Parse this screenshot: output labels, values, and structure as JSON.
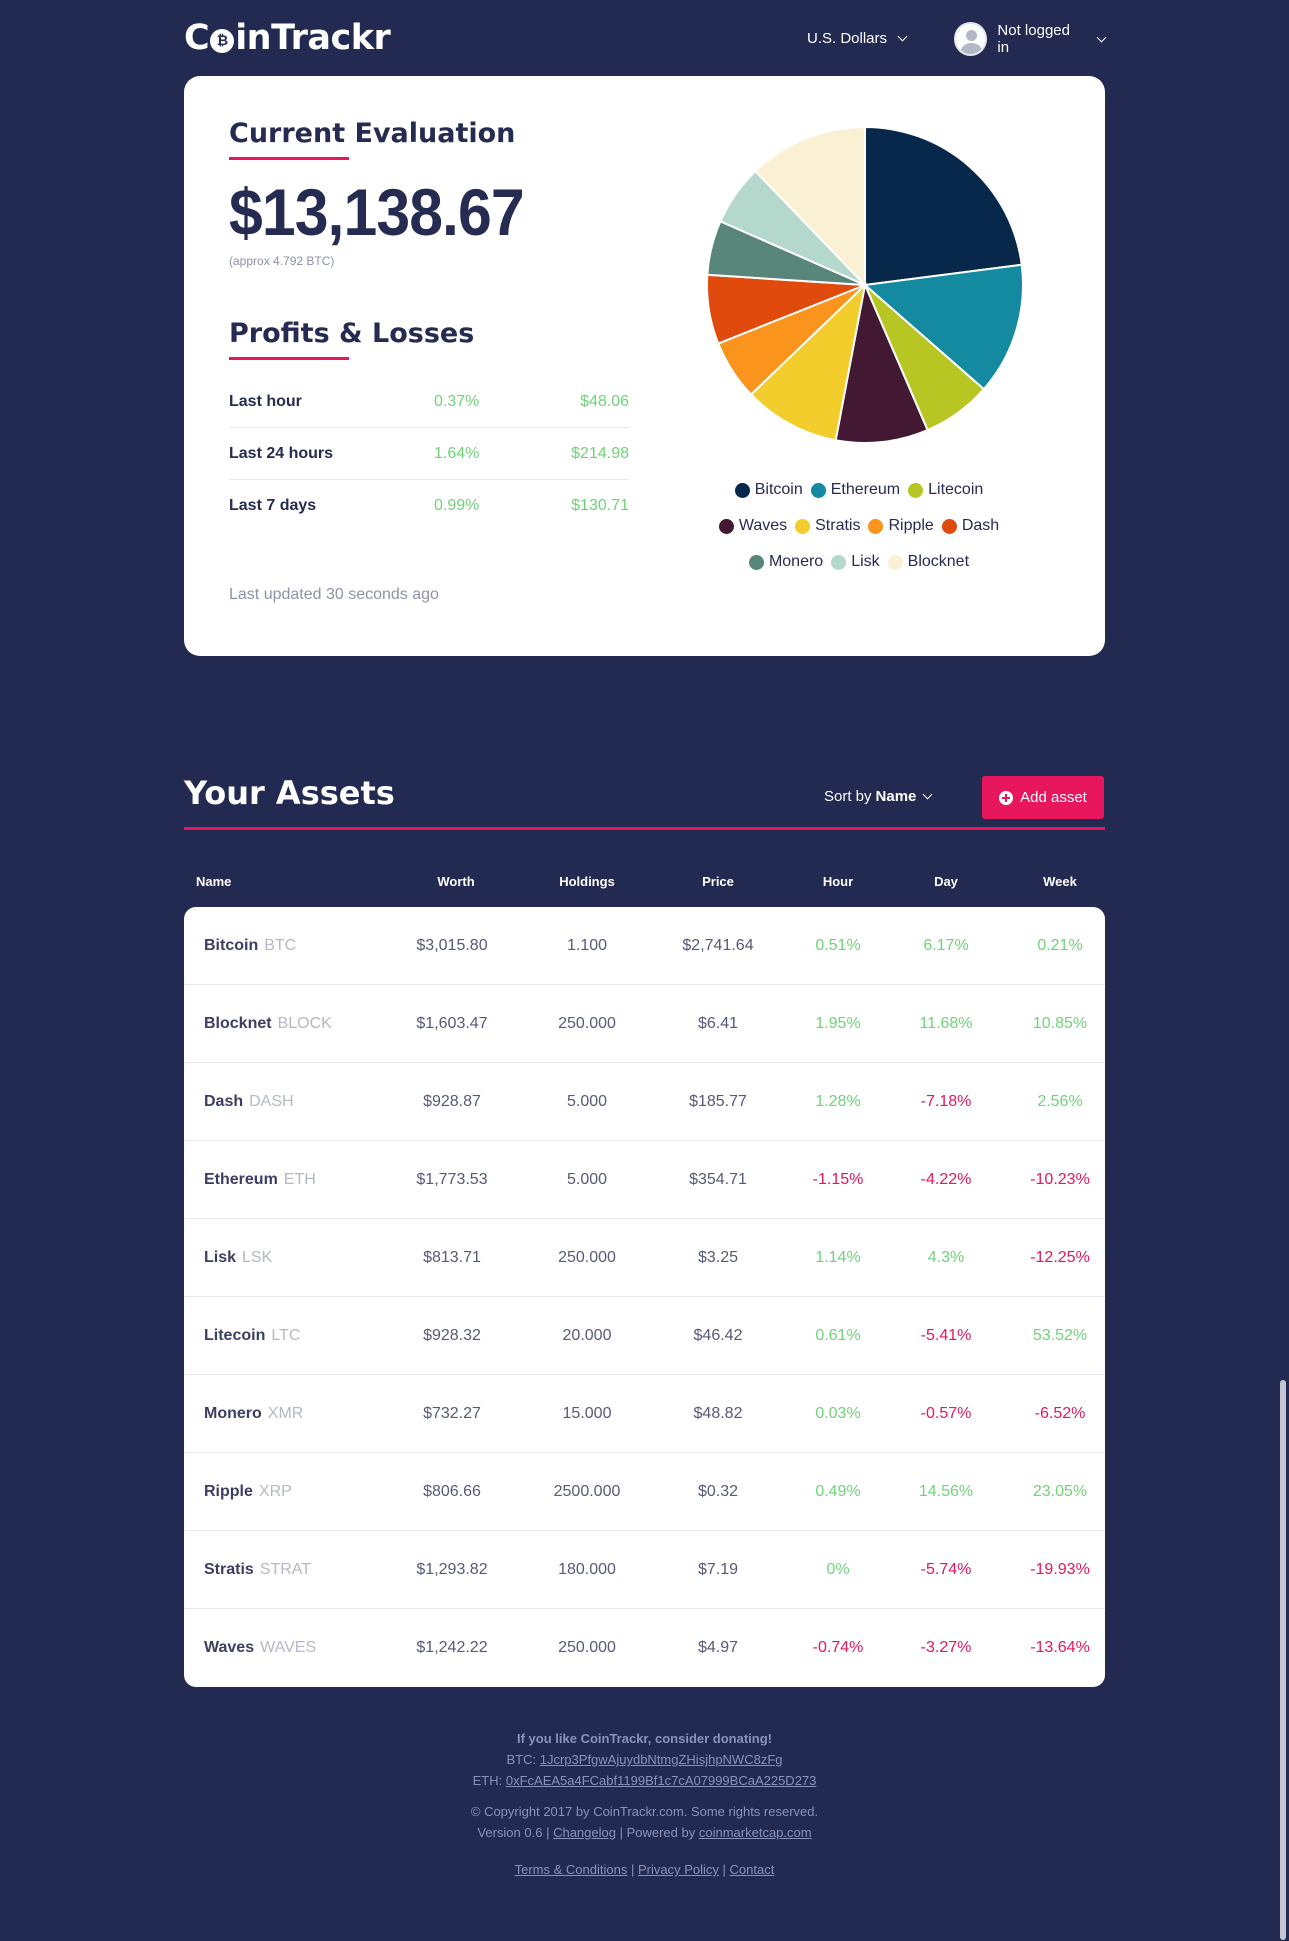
{
  "header": {
    "logo": {
      "pre": "C",
      "coin_glyph": "₿",
      "post": "inTrackr"
    },
    "currency": "U.S. Dollars",
    "user": "Not logged in"
  },
  "evaluation": {
    "title": "Current Evaluation",
    "amount": "$13,138.67",
    "approx": "(approx 4.792 BTC)"
  },
  "profits": {
    "title": "Profits & Losses",
    "rows": [
      {
        "label": "Last hour",
        "pct": "0.37%",
        "value": "$48.06"
      },
      {
        "label": "Last 24 hours",
        "pct": "1.64%",
        "value": "$214.98"
      },
      {
        "label": "Last 7 days",
        "pct": "0.99%",
        "value": "$130.71"
      }
    ],
    "updated": "Last updated 30 seconds ago"
  },
  "chart_data": {
    "type": "pie",
    "slices": [
      {
        "name": "Bitcoin",
        "value": 3015.8,
        "color": "#07284a"
      },
      {
        "name": "Ethereum",
        "value": 1773.53,
        "color": "#138aa0"
      },
      {
        "name": "Litecoin",
        "value": 928.32,
        "color": "#b7c623"
      },
      {
        "name": "Waves",
        "value": 1242.22,
        "color": "#431832"
      },
      {
        "name": "Stratis",
        "value": 1293.82,
        "color": "#f2cd2c"
      },
      {
        "name": "Ripple",
        "value": 806.66,
        "color": "#fa941c"
      },
      {
        "name": "Dash",
        "value": 928.87,
        "color": "#e04b0d"
      },
      {
        "name": "Monero",
        "value": 732.27,
        "color": "#58867a"
      },
      {
        "name": "Lisk",
        "value": 813.71,
        "color": "#b5d8cc"
      },
      {
        "name": "Blocknet",
        "value": 1603.47,
        "color": "#faf0d4"
      }
    ],
    "legend_rows": [
      [
        "Bitcoin",
        "Ethereum",
        "Litecoin"
      ],
      [
        "Waves",
        "Stratis",
        "Ripple",
        "Dash"
      ],
      [
        "Monero",
        "Lisk",
        "Blocknet"
      ]
    ]
  },
  "assets": {
    "title": "Your Assets",
    "sort_prefix": "Sort by",
    "sort_value": "Name",
    "add_label": "Add asset",
    "columns": [
      "Name",
      "Worth",
      "Holdings",
      "Price",
      "Hour",
      "Day",
      "Week"
    ],
    "rows": [
      {
        "name": "Bitcoin",
        "symbol": "BTC",
        "worth": "$3,015.80",
        "holdings": "1.100",
        "price": "$2,741.64",
        "hour": "0.51%",
        "day": "6.17%",
        "week": "0.21%"
      },
      {
        "name": "Blocknet",
        "symbol": "BLOCK",
        "worth": "$1,603.47",
        "holdings": "250.000",
        "price": "$6.41",
        "hour": "1.95%",
        "day": "11.68%",
        "week": "10.85%"
      },
      {
        "name": "Dash",
        "symbol": "DASH",
        "worth": "$928.87",
        "holdings": "5.000",
        "price": "$185.77",
        "hour": "1.28%",
        "day": "-7.18%",
        "week": "2.56%"
      },
      {
        "name": "Ethereum",
        "symbol": "ETH",
        "worth": "$1,773.53",
        "holdings": "5.000",
        "price": "$354.71",
        "hour": "-1.15%",
        "day": "-4.22%",
        "week": "-10.23%"
      },
      {
        "name": "Lisk",
        "symbol": "LSK",
        "worth": "$813.71",
        "holdings": "250.000",
        "price": "$3.25",
        "hour": "1.14%",
        "day": "4.3%",
        "week": "-12.25%"
      },
      {
        "name": "Litecoin",
        "symbol": "LTC",
        "worth": "$928.32",
        "holdings": "20.000",
        "price": "$46.42",
        "hour": "0.61%",
        "day": "-5.41%",
        "week": "53.52%"
      },
      {
        "name": "Monero",
        "symbol": "XMR",
        "worth": "$732.27",
        "holdings": "15.000",
        "price": "$48.82",
        "hour": "0.03%",
        "day": "-0.57%",
        "week": "-6.52%"
      },
      {
        "name": "Ripple",
        "symbol": "XRP",
        "worth": "$806.66",
        "holdings": "2500.000",
        "price": "$0.32",
        "hour": "0.49%",
        "day": "14.56%",
        "week": "23.05%"
      },
      {
        "name": "Stratis",
        "symbol": "STRAT",
        "worth": "$1,293.82",
        "holdings": "180.000",
        "price": "$7.19",
        "hour": "0%",
        "day": "-5.74%",
        "week": "-19.93%"
      },
      {
        "name": "Waves",
        "symbol": "WAVES",
        "worth": "$1,242.22",
        "holdings": "250.000",
        "price": "$4.97",
        "hour": "-0.74%",
        "day": "-3.27%",
        "week": "-13.64%"
      }
    ]
  },
  "footer": {
    "donate": "If you like CoinTrackr, consider donating!",
    "btc_label": "BTC:",
    "btc_address": "1Jcrp3PfgwAjuydbNtmgZHisjhpNWC8zFg",
    "eth_label": "ETH:",
    "eth_address": "0xFcAEA5a4FCabf1199Bf1c7cA07999BCaA225D273",
    "copyright": "© Copyright 2017 by CoinTrackr.com. Some rights reserved.",
    "version": "Version 0.6 |",
    "changelog": "Changelog",
    "powered": "| Powered by",
    "cmc": "coinmarketcap.com",
    "terms": "Terms & Conditions",
    "privacy": "Privacy Policy",
    "contact": "Contact",
    "sep": "|"
  }
}
